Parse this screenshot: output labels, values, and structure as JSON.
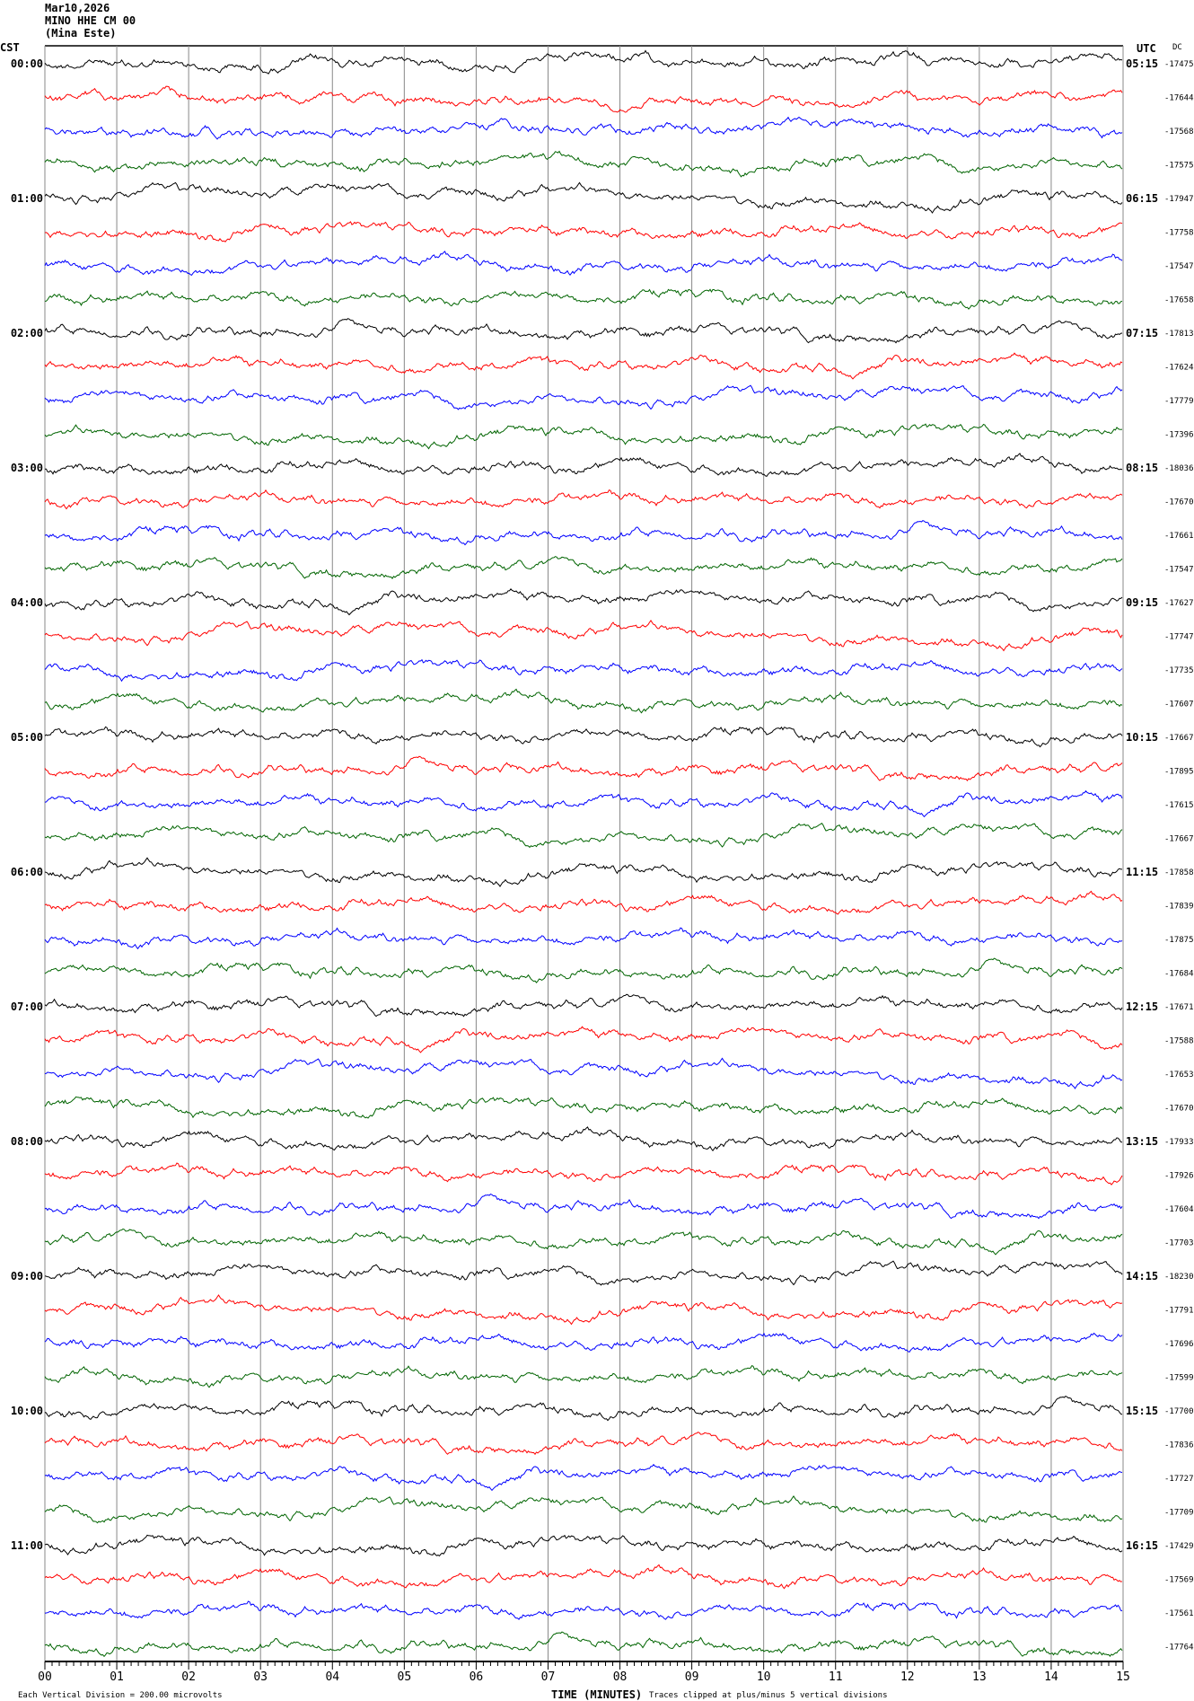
{
  "chart_data": {
    "type": "line",
    "title_lines": [
      "Mar10,2026",
      "MINO HHE CM 00",
      "(Mina Este)"
    ],
    "left_timezone": "CST",
    "right_timezone": "UTC",
    "dc_header": "DC",
    "xlabel": "TIME (MINUTES)",
    "x_ticks": [
      "00",
      "01",
      "02",
      "03",
      "04",
      "05",
      "06",
      "07",
      "08",
      "09",
      "10",
      "11",
      "12",
      "13",
      "14",
      "15"
    ],
    "xlim": [
      0,
      15
    ],
    "scale_note": "Each Vertical Division =  200.00 microvolts",
    "clip_note": "Traces clipped at plus/minus 5 vertical divisions",
    "trace_colors": [
      "#000000",
      "#ff0000",
      "#0000ff",
      "#006400"
    ],
    "left_hour_labels": [
      "00:00",
      "01:00",
      "02:00",
      "03:00",
      "04:00",
      "05:00",
      "06:00",
      "07:00",
      "08:00",
      "09:00",
      "10:00",
      "11:00"
    ],
    "right_hour_labels": [
      "05:15",
      "06:15",
      "07:15",
      "08:15",
      "09:15",
      "10:15",
      "11:15",
      "12:15",
      "13:15",
      "14:15",
      "15:15",
      "16:15"
    ],
    "dc_offsets": [
      -17475,
      -17644,
      -17568,
      -17575,
      -17947,
      -17758,
      -17547,
      -17658,
      -17813,
      -17624,
      -17779,
      -17396,
      -18036,
      -17670,
      -17661,
      -17547,
      -17627,
      -17747,
      -17735,
      -17607,
      -17667,
      -17895,
      -17615,
      -17667,
      -17858,
      -17839,
      -17875,
      -17684,
      -17671,
      -17588,
      -17653,
      -17670,
      -17933,
      -17926,
      -17604,
      -17703,
      -18230,
      -17791,
      -17696,
      -17599,
      -17700,
      -17836,
      -17727,
      -17709,
      -17429,
      -17569,
      -17561,
      -17764
    ]
  }
}
